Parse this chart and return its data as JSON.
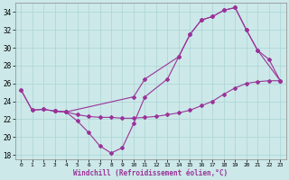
{
  "xlabel": "Windchill (Refroidissement éolien,°C)",
  "bg_color": "#cce8e8",
  "grid_color": "#aad4d4",
  "line_color": "#993399",
  "x_ticks": [
    0,
    1,
    2,
    3,
    4,
    5,
    6,
    7,
    8,
    9,
    10,
    11,
    12,
    13,
    14,
    15,
    16,
    17,
    18,
    19,
    20,
    21,
    22,
    23
  ],
  "ylim": [
    17.5,
    35.0
  ],
  "yticks": [
    18,
    20,
    22,
    24,
    26,
    28,
    30,
    32,
    34
  ],
  "line1_x": [
    0,
    1,
    2,
    3,
    4,
    10,
    11,
    14,
    15,
    16,
    17,
    18,
    19,
    20,
    21,
    22,
    23
  ],
  "line1_y": [
    25.3,
    23.0,
    23.1,
    22.9,
    22.8,
    24.5,
    26.5,
    29.0,
    31.5,
    33.1,
    33.5,
    34.2,
    34.5,
    32.0,
    29.7,
    28.7,
    26.3
  ],
  "line2_x": [
    0,
    1,
    2,
    3,
    4,
    5,
    6,
    7,
    8,
    9,
    10,
    11,
    12,
    13,
    14,
    15,
    16,
    17,
    18,
    19,
    20,
    21,
    22,
    23
  ],
  "line2_y": [
    25.3,
    23.0,
    23.1,
    22.9,
    22.8,
    22.5,
    22.3,
    22.2,
    22.2,
    22.1,
    22.1,
    22.2,
    22.3,
    22.5,
    22.7,
    23.0,
    23.5,
    24.0,
    24.8,
    25.5,
    26.0,
    26.2,
    26.3,
    26.3
  ],
  "line3_x": [
    3,
    4,
    5,
    6,
    7,
    8,
    9,
    10,
    11,
    13,
    14,
    15,
    16,
    17,
    18,
    19,
    20,
    21,
    23
  ],
  "line3_y": [
    22.9,
    22.8,
    21.8,
    20.5,
    19.0,
    18.2,
    18.8,
    21.5,
    24.5,
    26.5,
    29.0,
    31.5,
    33.1,
    33.5,
    34.2,
    34.5,
    32.0,
    29.7,
    26.3
  ]
}
